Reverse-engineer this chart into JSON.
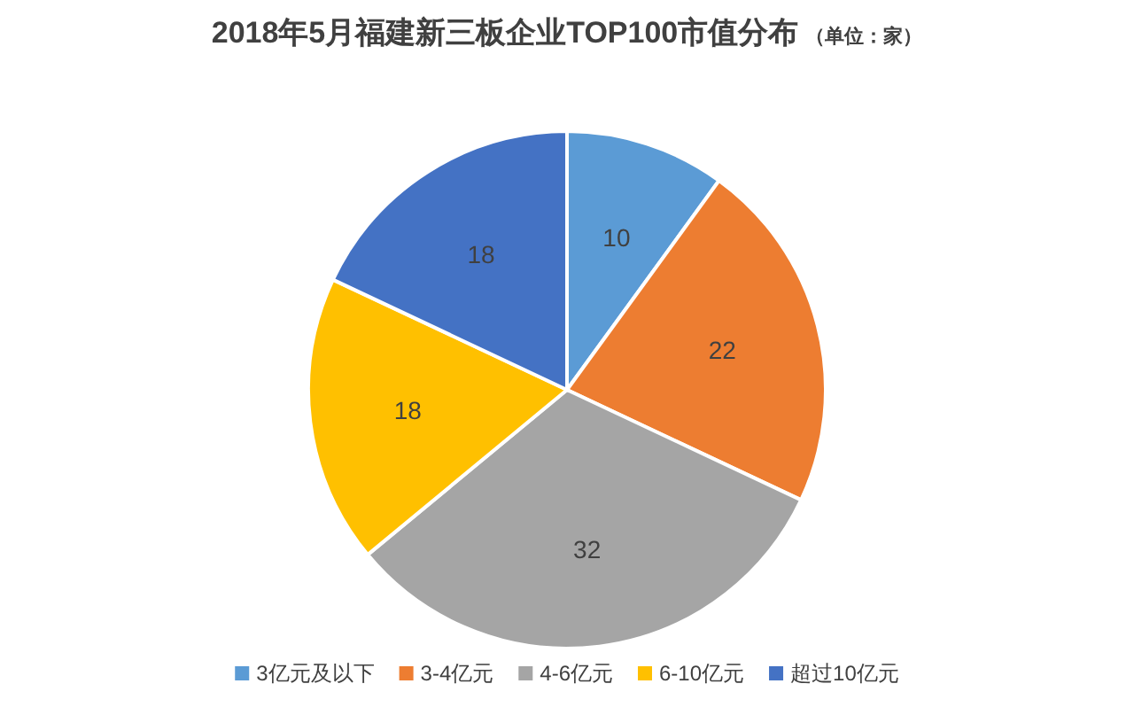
{
  "chart_data": {
    "type": "pie",
    "title": "2018年5月福建新三板企业TOP100市值分布",
    "subtitle": "（单位：家）",
    "categories": [
      "3亿元及以下",
      "3-4亿元",
      "4-6亿元",
      "6-10亿元",
      "超过10亿元"
    ],
    "values": [
      10,
      22,
      32,
      18,
      18
    ],
    "colors": [
      "#5b9bd5",
      "#ed7d31",
      "#a5a5a5",
      "#ffc000",
      "#4472c4"
    ],
    "data_labels": true,
    "legend": "bottom"
  }
}
